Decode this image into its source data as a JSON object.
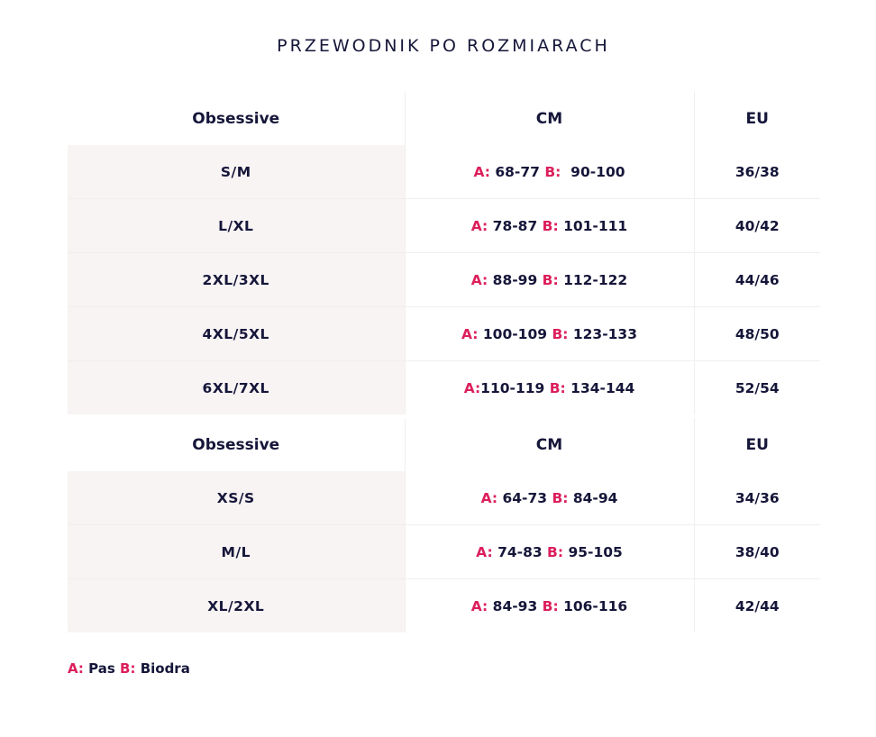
{
  "title": "PRZEWODNIK PO ROZMIARACH",
  "tables": [
    {
      "headers": [
        "Obsessive",
        "CM",
        "EU"
      ],
      "rows": [
        {
          "size": "S/M",
          "a_label": "A:",
          "a_value": "68-77",
          "b_label": "B:",
          "b_value": "90-100",
          "eu": "36/38"
        },
        {
          "size": "L/XL",
          "a_label": "A:",
          "a_value": "78-87",
          "b_label": "B:",
          "b_value": "101-111",
          "eu": "40/42"
        },
        {
          "size": "2XL/3XL",
          "a_label": "A:",
          "a_value": "88-99",
          "b_label": "B:",
          "b_value": "112-122",
          "eu": "44/46"
        },
        {
          "size": "4XL/5XL",
          "a_label": "A:",
          "a_value": "100-109",
          "b_label": "B:",
          "b_value": "123-133",
          "eu": "48/50"
        },
        {
          "size": "6XL/7XL",
          "a_label": "A:",
          "a_value": "110-119",
          "b_label": "B:",
          "b_value": "134-144",
          "eu": "52/54"
        }
      ]
    },
    {
      "headers": [
        "Obsessive",
        "CM",
        "EU"
      ],
      "rows": [
        {
          "size": "XS/S",
          "a_label": "A:",
          "a_value": "64-73",
          "b_label": "B:",
          "b_value": "84-94",
          "eu": "34/36"
        },
        {
          "size": "M/L",
          "a_label": "A:",
          "a_value": "74-83",
          "b_label": "B:",
          "b_value": "95-105",
          "eu": "38/40"
        },
        {
          "size": "XL/2XL",
          "a_label": "A:",
          "a_value": "84-93",
          "b_label": "B:",
          "b_value": "106-116",
          "eu": "42/44"
        }
      ]
    }
  ],
  "legend": {
    "a_label": "A:",
    "a_text": "Pas",
    "b_label": "B:",
    "b_text": "Biodra"
  },
  "colors": {
    "accent": "#dc1f5c",
    "text": "#16163a",
    "size_cell_bg": "#f8f4f4"
  }
}
